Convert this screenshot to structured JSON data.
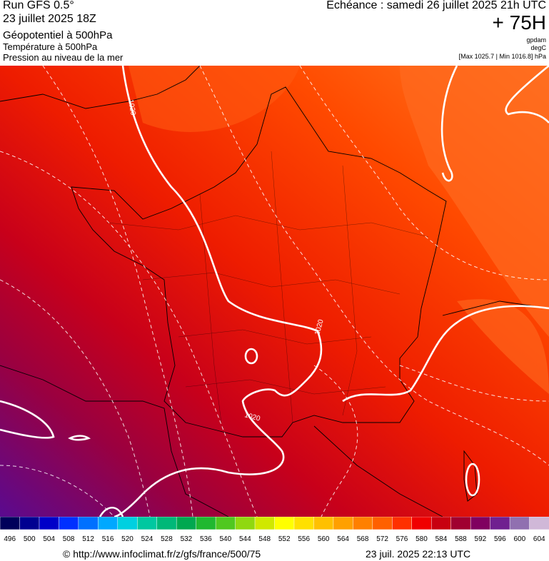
{
  "header": {
    "left": [
      "Run GFS 0.5°",
      "23 juillet 2025 18Z",
      "Géopotentiel à 500hPa",
      "Température à 500hPa",
      "Pression au niveau de la mer"
    ],
    "echeance": "Echéance : samedi 26 juillet 2025 21h UTC",
    "lead": "+ 75H",
    "units": [
      "gpdam",
      "degC",
      "[Max 1025.7 | Min 1016.8] hPa"
    ]
  },
  "map": {
    "contour_labels": [
      "1020",
      "1020",
      "1020"
    ]
  },
  "colorbar": {
    "labels": [
      496,
      500,
      504,
      508,
      512,
      516,
      520,
      524,
      528,
      532,
      536,
      540,
      544,
      548,
      552,
      556,
      560,
      564,
      568,
      572,
      576,
      580,
      584,
      588,
      592,
      596,
      600,
      604
    ],
    "colors": [
      "#00005a",
      "#000090",
      "#0000c8",
      "#0030ff",
      "#0070ff",
      "#00a8ff",
      "#00d0e0",
      "#00c8a0",
      "#00b878",
      "#00a850",
      "#20b830",
      "#50c820",
      "#90d810",
      "#d0e800",
      "#ffff00",
      "#ffe000",
      "#ffc000",
      "#ffa000",
      "#ff8000",
      "#ff6000",
      "#ff3000",
      "#f00000",
      "#c80010",
      "#a00030",
      "#800060",
      "#702090",
      "#9070b0",
      "#d0b8d8"
    ]
  },
  "footer": {
    "url": "© http://www.infoclimat.fr/z/gfs/france/500/75",
    "date": "23 juil. 2025 22:13 UTC"
  }
}
